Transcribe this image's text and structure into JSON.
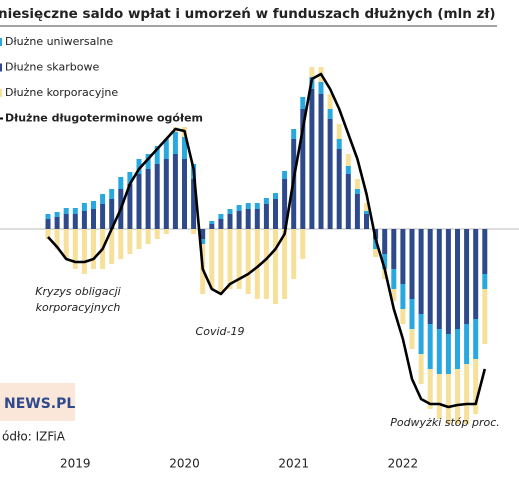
{
  "chart_data": {
    "type": "bar",
    "stacked": true,
    "title": "niesięczne saldo wpłat i umorzeń w funduszach dłużnych (mln zł)",
    "categories": [
      null,
      null,
      null,
      "2019",
      null,
      null,
      null,
      null,
      null,
      null,
      null,
      null,
      null,
      null,
      null,
      "2020",
      null,
      null,
      null,
      null,
      null,
      null,
      null,
      null,
      null,
      null,
      null,
      "2021",
      null,
      null,
      null,
      null,
      null,
      null,
      null,
      null,
      null,
      null,
      null,
      "2022",
      null,
      null,
      null,
      null,
      null,
      null,
      null,
      null,
      null
    ],
    "series": [
      {
        "name": "Dłużne uniwersalne",
        "color": "#29a8e0",
        "values": [
          5,
          5,
          6,
          6,
          8,
          8,
          10,
          10,
          12,
          12,
          15,
          15,
          18,
          20,
          22,
          22,
          15,
          -5,
          3,
          5,
          5,
          6,
          6,
          6,
          6,
          6,
          8,
          10,
          12,
          12,
          12,
          10,
          10,
          8,
          5,
          3,
          -10,
          -15,
          -20,
          -25,
          -30,
          -40,
          -45,
          -45,
          -40,
          -40,
          -40,
          -40,
          -15
        ]
      },
      {
        "name": "Dłużne skarbowe",
        "color": "#2e4a8a",
        "values": [
          10,
          12,
          15,
          15,
          18,
          20,
          25,
          30,
          40,
          45,
          55,
          60,
          65,
          70,
          75,
          70,
          50,
          -10,
          5,
          10,
          15,
          18,
          20,
          20,
          25,
          30,
          50,
          90,
          120,
          140,
          135,
          110,
          80,
          55,
          35,
          15,
          -10,
          -25,
          -40,
          -55,
          -70,
          -85,
          -95,
          -100,
          -105,
          -100,
          -95,
          -90,
          -45
        ]
      },
      {
        "name": "Dłużne korporacyjne",
        "color": "#f7e09a",
        "values": [
          -10,
          -20,
          -30,
          -40,
          -45,
          -40,
          -40,
          -35,
          -30,
          -25,
          -20,
          -15,
          -10,
          -5,
          5,
          10,
          -5,
          -50,
          -60,
          -65,
          -60,
          -60,
          -65,
          -70,
          -70,
          -75,
          -70,
          -50,
          -30,
          10,
          15,
          15,
          15,
          12,
          10,
          8,
          -8,
          -10,
          -12,
          -15,
          -20,
          -30,
          -40,
          -45,
          -50,
          -55,
          -60,
          -55,
          -55
        ]
      },
      {
        "name": "Dłużne długoterminowe ogółem",
        "type": "line",
        "color": "#000000",
        "values": [
          -8,
          -18,
          -30,
          -33,
          -33,
          -30,
          -20,
          0,
          20,
          45,
          60,
          70,
          80,
          90,
          100,
          98,
          60,
          -40,
          -60,
          -65,
          -55,
          -50,
          -45,
          -38,
          -30,
          -20,
          -5,
          50,
          100,
          150,
          155,
          140,
          120,
          95,
          70,
          35,
          -10,
          -40,
          -80,
          -110,
          -150,
          -170,
          -175,
          -175,
          -178,
          -176,
          -175,
          -175,
          -140
        ]
      }
    ],
    "ylim": [
      -190,
      165
    ],
    "annotations": [
      [
        "Kryzys obligacji",
        "korporacyjnych"
      ],
      [
        "Covid-19"
      ],
      [
        "Podwyżki stóp proc."
      ]
    ],
    "logo": "NEWS.PL",
    "source": "ódło: IZFiA"
  }
}
